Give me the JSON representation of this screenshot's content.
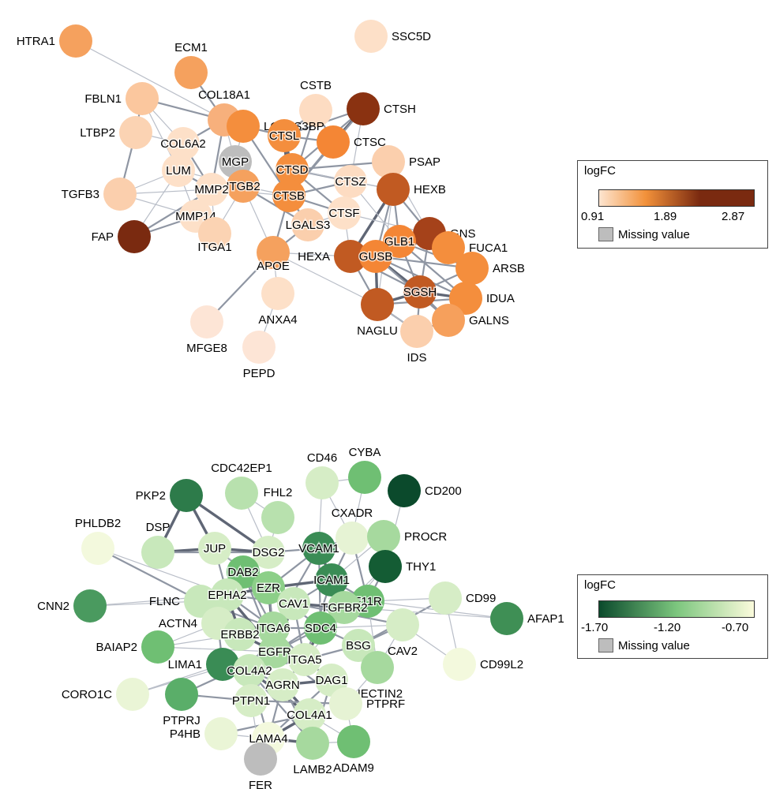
{
  "networks": [
    {
      "id": "up",
      "legend": {
        "title": "logFC",
        "min": "0.91",
        "mid": "1.89",
        "max": "2.87",
        "missing": "Missing value",
        "gradient": [
          "#fde5d0",
          "#f2913a",
          "#7a2a10"
        ]
      },
      "nodes": [
        {
          "id": "HTRA1",
          "color": "#f5a15e"
        },
        {
          "id": "ECM1",
          "color": "#f5a15e"
        },
        {
          "id": "SSC5D",
          "color": "#fde0c8"
        },
        {
          "id": "FBLN1",
          "color": "#fbc79e"
        },
        {
          "id": "COL18A1",
          "color": "#f7b07c"
        },
        {
          "id": "CSTB",
          "color": "#fddcc2"
        },
        {
          "id": "CTSH",
          "color": "#8a3211"
        },
        {
          "id": "LTBP2",
          "color": "#fbd3b3"
        },
        {
          "id": "LGALS3BP",
          "color": "#f48e3d"
        },
        {
          "id": "CTSL",
          "color": "#f48e3d"
        },
        {
          "id": "CTSC",
          "color": "#f48635"
        },
        {
          "id": "COL6A2",
          "color": "#fde0c8"
        },
        {
          "id": "PSAP",
          "color": "#fbcfad"
        },
        {
          "id": "MGP",
          "color": "#bdbdbd"
        },
        {
          "id": "CTSD",
          "color": "#f48e3d"
        },
        {
          "id": "LUM",
          "color": "#fde0c8"
        },
        {
          "id": "TGFB3",
          "color": "#fbcfad"
        },
        {
          "id": "ITGB2",
          "color": "#f5a15e"
        },
        {
          "id": "CTSZ",
          "color": "#fddcc2"
        },
        {
          "id": "HEXB",
          "color": "#c15a22"
        },
        {
          "id": "MMP2",
          "color": "#fde0c8"
        },
        {
          "id": "CTSB",
          "color": "#f48e3d"
        },
        {
          "id": "MMP14",
          "color": "#fde0c8"
        },
        {
          "id": "CTSF",
          "color": "#fde0c8"
        },
        {
          "id": "GNS",
          "color": "#a5421a"
        },
        {
          "id": "LGALS3",
          "color": "#fbcfad"
        },
        {
          "id": "FAP",
          "color": "#7a2a10"
        },
        {
          "id": "ITGA1",
          "color": "#fbd3b3"
        },
        {
          "id": "GLB1",
          "color": "#f48635"
        },
        {
          "id": "FUCA1",
          "color": "#f48e3d"
        },
        {
          "id": "APOE",
          "color": "#f5a15e"
        },
        {
          "id": "HEXA",
          "color": "#c15a22"
        },
        {
          "id": "GUSB",
          "color": "#f48635"
        },
        {
          "id": "ARSB",
          "color": "#f48e3d"
        },
        {
          "id": "SGSH",
          "color": "#c15a22"
        },
        {
          "id": "ANXA4",
          "color": "#fde0c8"
        },
        {
          "id": "IDUA",
          "color": "#f48e3d"
        },
        {
          "id": "NAGLU",
          "color": "#c15a22"
        },
        {
          "id": "MFGE8",
          "color": "#fde5d6"
        },
        {
          "id": "GALNS",
          "color": "#f6a05c"
        },
        {
          "id": "PEPD",
          "color": "#fde5d6"
        },
        {
          "id": "IDS",
          "color": "#fbcfad"
        }
      ]
    },
    {
      "id": "down",
      "legend": {
        "title": "logFC",
        "min": "-1.70",
        "mid": "-1.20",
        "max": "-0.70",
        "missing": "Missing value",
        "gradient": [
          "#0b4a2c",
          "#7cc67e",
          "#fbfbdc"
        ]
      },
      "nodes": [
        {
          "id": "CD46",
          "color": "#d6edc6"
        },
        {
          "id": "CYBA",
          "color": "#6fbf73"
        },
        {
          "id": "CDC42EP1",
          "color": "#b8e1ae"
        },
        {
          "id": "PKP2",
          "color": "#2d7b4a"
        },
        {
          "id": "CD200",
          "color": "#0b4a2c"
        },
        {
          "id": "FHL2",
          "color": "#b8e1ae"
        },
        {
          "id": "PHLDB2",
          "color": "#f3f9dd"
        },
        {
          "id": "CXADR",
          "color": "#e6f3d4"
        },
        {
          "id": "DSP",
          "color": "#c8e8bb"
        },
        {
          "id": "PROCR",
          "color": "#a6d99e"
        },
        {
          "id": "JUP",
          "color": "#d6edc6"
        },
        {
          "id": "DSG2",
          "color": "#d6edc6"
        },
        {
          "id": "VCAM1",
          "color": "#3a8c55"
        },
        {
          "id": "THY1",
          "color": "#145c34"
        },
        {
          "id": "CNN2",
          "color": "#4a9a5f"
        },
        {
          "id": "DAB2",
          "color": "#6fbf73"
        },
        {
          "id": "ICAM1",
          "color": "#3a8c55"
        },
        {
          "id": "CD99",
          "color": "#d6edc6"
        },
        {
          "id": "FLNC",
          "color": "#c8e8bb"
        },
        {
          "id": "EPHA2",
          "color": "#c8e8bb"
        },
        {
          "id": "EZR",
          "color": "#8ccf88"
        },
        {
          "id": "F11R",
          "color": "#6fbf73"
        },
        {
          "id": "AFAP1",
          "color": "#3f8f55"
        },
        {
          "id": "CAV1",
          "color": "#c8e8bb"
        },
        {
          "id": "TGFBR2",
          "color": "#a6d99e"
        },
        {
          "id": "ACTN4",
          "color": "#d6edc6"
        },
        {
          "id": "ITGA6",
          "color": "#a6d99e"
        },
        {
          "id": "SDC4",
          "color": "#6fbf73"
        },
        {
          "id": "ERBB2",
          "color": "#c8e8bb"
        },
        {
          "id": "BAIAP2",
          "color": "#6fbf73"
        },
        {
          "id": "BSG",
          "color": "#c8e8bb"
        },
        {
          "id": "CAV2",
          "color": "#d6edc6"
        },
        {
          "id": "EGFR",
          "color": "#a6d99e"
        },
        {
          "id": "LIMA1",
          "color": "#3a8c55"
        },
        {
          "id": "ITGA5",
          "color": "#d6edc6"
        },
        {
          "id": "CD99L2",
          "color": "#f3f9dd"
        },
        {
          "id": "COL4A2",
          "color": "#c8e8bb"
        },
        {
          "id": "DAG1",
          "color": "#d6edc6"
        },
        {
          "id": "NECTIN2",
          "color": "#a6d99e"
        },
        {
          "id": "AGRN",
          "color": "#d6edc6"
        },
        {
          "id": "CORO1C",
          "color": "#eaf5d6"
        },
        {
          "id": "PTPRF",
          "color": "#e6f3d4"
        },
        {
          "id": "PTPN1",
          "color": "#d6edc6"
        },
        {
          "id": "PTPRJ",
          "color": "#5aae69"
        },
        {
          "id": "COL4A1",
          "color": "#d6edc6"
        },
        {
          "id": "LAMA4",
          "color": "#f3f9dd"
        },
        {
          "id": "P4HB",
          "color": "#eaf5d6"
        },
        {
          "id": "ADAM9",
          "color": "#6fbf73"
        },
        {
          "id": "LAMB2",
          "color": "#a6d99e"
        },
        {
          "id": "FER",
          "color": "#bdbdbd"
        }
      ]
    }
  ]
}
